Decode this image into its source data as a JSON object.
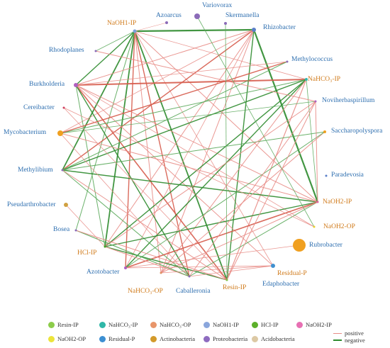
{
  "colors": {
    "positive_edge": "#d65b4b",
    "negative_edge": "#2e8b2e",
    "thin_red": "#e88c86",
    "thin_green": "#5aa85a",
    "proteobacteria_label": "#2e6fb0",
    "phosphorus_label": "#d07a1a",
    "actinobacteria_node": "#f0a020"
  },
  "nodes": [
    {
      "id": "variovorax",
      "label": "Variovorax",
      "group": "Proteobacteria",
      "color": "#8b6bb8",
      "size": 4
    },
    {
      "id": "azoarcus",
      "label": "Azoarcus",
      "group": "Proteobacteria",
      "color": "#8b6bb8",
      "size": 2
    },
    {
      "id": "skermanella",
      "label": "Skermanella",
      "group": "Proteobacteria",
      "color": "#8b6bb8",
      "size": 2
    },
    {
      "id": "naoh1ip",
      "label": "NaOH1-IP",
      "group": "NaOH1-IP",
      "color": "#7a9fd8",
      "size": 2.5
    },
    {
      "id": "rhizobacter",
      "label": "Rhizobacter",
      "group": "Proteobacteria",
      "color": "#5a7fc8",
      "size": 3
    },
    {
      "id": "rhodoplanes",
      "label": "Rhodoplanes",
      "group": "Proteobacteria",
      "color": "#8b6bb8",
      "size": 1.5
    },
    {
      "id": "methylococcus",
      "label": "Methylococcus",
      "group": "Proteobacteria",
      "color": "#8b6bb8",
      "size": 1.5
    },
    {
      "id": "nahco3ip",
      "label": "NaHCO₃-IP",
      "group": "NaHCO3-IP",
      "color": "#30b8b0",
      "size": 2
    },
    {
      "id": "burkholderia",
      "label": "Burkholderia",
      "group": "Proteobacteria",
      "color": "#b060c0",
      "size": 3
    },
    {
      "id": "noviherbaspirillum",
      "label": "Noviherbaspirillum",
      "group": "Proteobacteria",
      "color": "#b060c0",
      "size": 1.5
    },
    {
      "id": "cereibacter",
      "label": "Cereibacter",
      "group": "Proteobacteria",
      "color": "#d04060",
      "size": 1.5
    },
    {
      "id": "mycobacterium",
      "label": "Mycobacterium",
      "group": "Actinobacteria",
      "color": "#f0a020",
      "size": 4
    },
    {
      "id": "saccharopolyspora",
      "label": "Saccharopolyspora",
      "group": "Actinobacteria",
      "color": "#f0a020",
      "size": 2
    },
    {
      "id": "methylibium",
      "label": "Methylibium",
      "group": "Proteobacteria",
      "color": "#8b6bb8",
      "size": 1.5
    },
    {
      "id": "paradevosia",
      "label": "Paradevosia",
      "group": "Proteobacteria",
      "color": "#5a7fc8",
      "size": 1.5
    },
    {
      "id": "pseudarthrobacter",
      "label": "Pseudarthrobacter",
      "group": "Actinobacteria",
      "color": "#d0a040",
      "size": 3
    },
    {
      "id": "naoh2ip",
      "label": "NaOH2-IP",
      "group": "NaOH2-IP",
      "color": "#e060a0",
      "size": 1.5
    },
    {
      "id": "bosea",
      "label": "Bosea",
      "group": "Proteobacteria",
      "color": "#8b6bb8",
      "size": 1.5
    },
    {
      "id": "naoh2op",
      "label": "NaOH2-OP",
      "group": "NaOH2-OP",
      "color": "#e8d030",
      "size": 1.5
    },
    {
      "id": "rubrobacter",
      "label": "Rubrobacter",
      "group": "Actinobacteria",
      "color": "#f0a020",
      "size": 9
    },
    {
      "id": "hclip",
      "label": "HCl-IP",
      "group": "HCl-IP",
      "color": "#40a020",
      "size": 1.5
    },
    {
      "id": "azotobacter",
      "label": "Azotobacter",
      "group": "Proteobacteria",
      "color": "#b060c0",
      "size": 2
    },
    {
      "id": "residualp",
      "label": "Residual-P",
      "group": "Residual-P",
      "color": "#4090d0",
      "size": 3
    },
    {
      "id": "edaphobacter",
      "label": "Edaphobacter",
      "group": "Acidobacteria",
      "color": "#c0a080",
      "size": 1.5
    },
    {
      "id": "nahco3op",
      "label": "NaHCO₃-OP",
      "group": "NaHCO3-OP",
      "color": "#e09060",
      "size": 1.5
    },
    {
      "id": "caballeronia",
      "label": "Caballeronia",
      "group": "Proteobacteria",
      "color": "#8b6bb8",
      "size": 1.5
    },
    {
      "id": "resinip",
      "label": "Resin-IP",
      "group": "Resin-IP",
      "color": "#80c040",
      "size": 1.5
    }
  ],
  "edges": [
    [
      "naoh1ip",
      "rhizobacter",
      "neg",
      2.2
    ],
    [
      "naoh1ip",
      "burkholderia",
      "neg",
      1.4
    ],
    [
      "naoh1ip",
      "methylibium",
      "neg",
      1.8
    ],
    [
      "naoh1ip",
      "hclip",
      "neg",
      1.8
    ],
    [
      "naoh1ip",
      "resinip",
      "neg",
      1.8
    ],
    [
      "naoh1ip",
      "caballeronia",
      "pos",
      1.4
    ],
    [
      "naoh1ip",
      "naoh2ip",
      "pos",
      1.0
    ],
    [
      "naoh1ip",
      "azotobacter",
      "pos",
      1.4
    ],
    [
      "naoh1ip",
      "nahco3op",
      "pos",
      1.0
    ],
    [
      "naoh1ip",
      "bosea",
      "neg",
      1.0
    ],
    [
      "naoh1ip",
      "rhodoplanes",
      "neg",
      0.8
    ],
    [
      "naoh1ip",
      "nahco3ip",
      "pos",
      0.8
    ],
    [
      "naoh1ip",
      "residualp",
      "pos",
      0.8
    ],
    [
      "rhizobacter",
      "naoh2ip",
      "neg",
      2.2
    ],
    [
      "rhizobacter",
      "burkholderia",
      "pos",
      1.0
    ],
    [
      "rhizobacter",
      "methylibium",
      "pos",
      1.4
    ],
    [
      "rhizobacter",
      "resinip",
      "neg",
      1.4
    ],
    [
      "rhizobacter",
      "hclip",
      "pos",
      1.0
    ],
    [
      "rhizobacter",
      "azotobacter",
      "pos",
      0.8
    ],
    [
      "rhizobacter",
      "nahco3op",
      "pos",
      1.0
    ],
    [
      "rhizobacter",
      "mycobacterium",
      "pos",
      0.8
    ],
    [
      "burkholderia",
      "nahco3ip",
      "pos",
      2.0
    ],
    [
      "burkholderia",
      "naoh2ip",
      "pos",
      1.0
    ],
    [
      "burkholderia",
      "resinip",
      "pos",
      1.6
    ],
    [
      "burkholderia",
      "caballeronia",
      "neg",
      1.4
    ],
    [
      "burkholderia",
      "hclip",
      "neg",
      1.0
    ],
    [
      "burkholderia",
      "residualp",
      "pos",
      1.0
    ],
    [
      "burkholderia",
      "naoh2op",
      "pos",
      0.8
    ],
    [
      "nahco3ip",
      "methylibium",
      "neg",
      1.4
    ],
    [
      "nahco3ip",
      "mycobacterium",
      "neg",
      1.0
    ],
    [
      "nahco3ip",
      "hclip",
      "neg",
      1.4
    ],
    [
      "nahco3ip",
      "azotobacter",
      "neg",
      1.4
    ],
    [
      "nahco3ip",
      "resinip",
      "pos",
      1.2
    ],
    [
      "nahco3ip",
      "nahco3op",
      "pos",
      1.0
    ],
    [
      "nahco3ip",
      "naoh2ip",
      "neg",
      0.8
    ],
    [
      "methylococcus",
      "mycobacterium",
      "pos",
      1.4
    ],
    [
      "methylococcus",
      "methylibium",
      "neg",
      1.0
    ],
    [
      "methylibium",
      "naoh2ip",
      "neg",
      1.4
    ],
    [
      "methylibium",
      "saccharopolyspora",
      "neg",
      1.0
    ],
    [
      "methylibium",
      "caballeronia",
      "neg",
      1.0
    ],
    [
      "methylibium",
      "resinip",
      "pos",
      1.0
    ],
    [
      "mycobacterium",
      "naoh2ip",
      "pos",
      1.0
    ],
    [
      "mycobacterium",
      "caballeronia",
      "pos",
      0.8
    ],
    [
      "mycobacterium",
      "noviherbaspirillum",
      "neg",
      0.8
    ],
    [
      "naoh2ip",
      "hclip",
      "neg",
      1.4
    ],
    [
      "naoh2ip",
      "azotobacter",
      "pos",
      1.6
    ],
    [
      "naoh2ip",
      "caballeronia",
      "neg",
      1.0
    ],
    [
      "naoh2ip",
      "nahco3op",
      "pos",
      1.0
    ],
    [
      "saccharopolyspora",
      "nahco3op",
      "pos",
      1.0
    ],
    [
      "saccharopolyspora",
      "azotobacter",
      "neg",
      1.0
    ],
    [
      "hclip",
      "resinip",
      "neg",
      1.4
    ],
    [
      "hclip",
      "caballeronia",
      "pos",
      1.0
    ],
    [
      "bosea",
      "caballeronia",
      "neg",
      1.2
    ],
    [
      "bosea",
      "resinip",
      "pos",
      1.0
    ],
    [
      "azotobacter",
      "rubrobacter",
      "pos",
      0.8
    ],
    [
      "azotobacter",
      "residualp",
      "pos",
      0.8
    ],
    [
      "resinip",
      "noviherbaspirillum",
      "pos",
      1.0
    ],
    [
      "resinip",
      "cereibacter",
      "pos",
      0.8
    ],
    [
      "caballeronia",
      "noviherbaspirillum",
      "pos",
      1.0
    ],
    [
      "caballeronia",
      "residualp",
      "pos",
      0.8
    ],
    [
      "nahco3op",
      "residualp",
      "pos",
      0.8
    ],
    [
      "noviherbaspirillum",
      "naoh2ip",
      "pos",
      1.0
    ],
    [
      "noviherbaspirillum",
      "rhodoplanes",
      "pos",
      1.0
    ],
    [
      "noviherbaspirillum",
      "hclip",
      "pos",
      1.0
    ],
    [
      "skermanella",
      "resinip",
      "neg",
      0.8
    ],
    [
      "variovorax",
      "naoh2op",
      "neg",
      0.8
    ],
    [
      "azoarcus",
      "naoh1ip",
      "pos",
      0.6
    ],
    [
      "cereibacter",
      "naoh2op",
      "pos",
      0.8
    ],
    [
      "burkholderia",
      "methylococcus",
      "pos",
      0.8
    ],
    [
      "pseudarthrobacter",
      "hclip",
      "pos",
      0.8
    ]
  ],
  "legend": {
    "items": [
      {
        "label": "Resin-IP",
        "color": "#8ccc4a"
      },
      {
        "label": "NaHCO₃-IP",
        "color": "#2fb7a8"
      },
      {
        "label": "NaHCO₃-OP",
        "color": "#e8956a"
      },
      {
        "label": "NaOH1-IP",
        "color": "#8aa6dc"
      },
      {
        "label": "HCl-IP",
        "color": "#5cb02a"
      },
      {
        "label": "NaOH2-IP",
        "color": "#e770b3"
      },
      {
        "label": "NaOH2-OP",
        "color": "#ece43a"
      },
      {
        "label": "Residual-P",
        "color": "#3c8fd2"
      },
      {
        "label": "Actinobacteria",
        "color": "#d39a2a"
      },
      {
        "label": "Proteobacteria",
        "color": "#8e6bc0"
      },
      {
        "label": "Acidobacteria",
        "color": "#dcc9a4"
      }
    ],
    "positive_label": "positive",
    "negative_label": "negative"
  }
}
